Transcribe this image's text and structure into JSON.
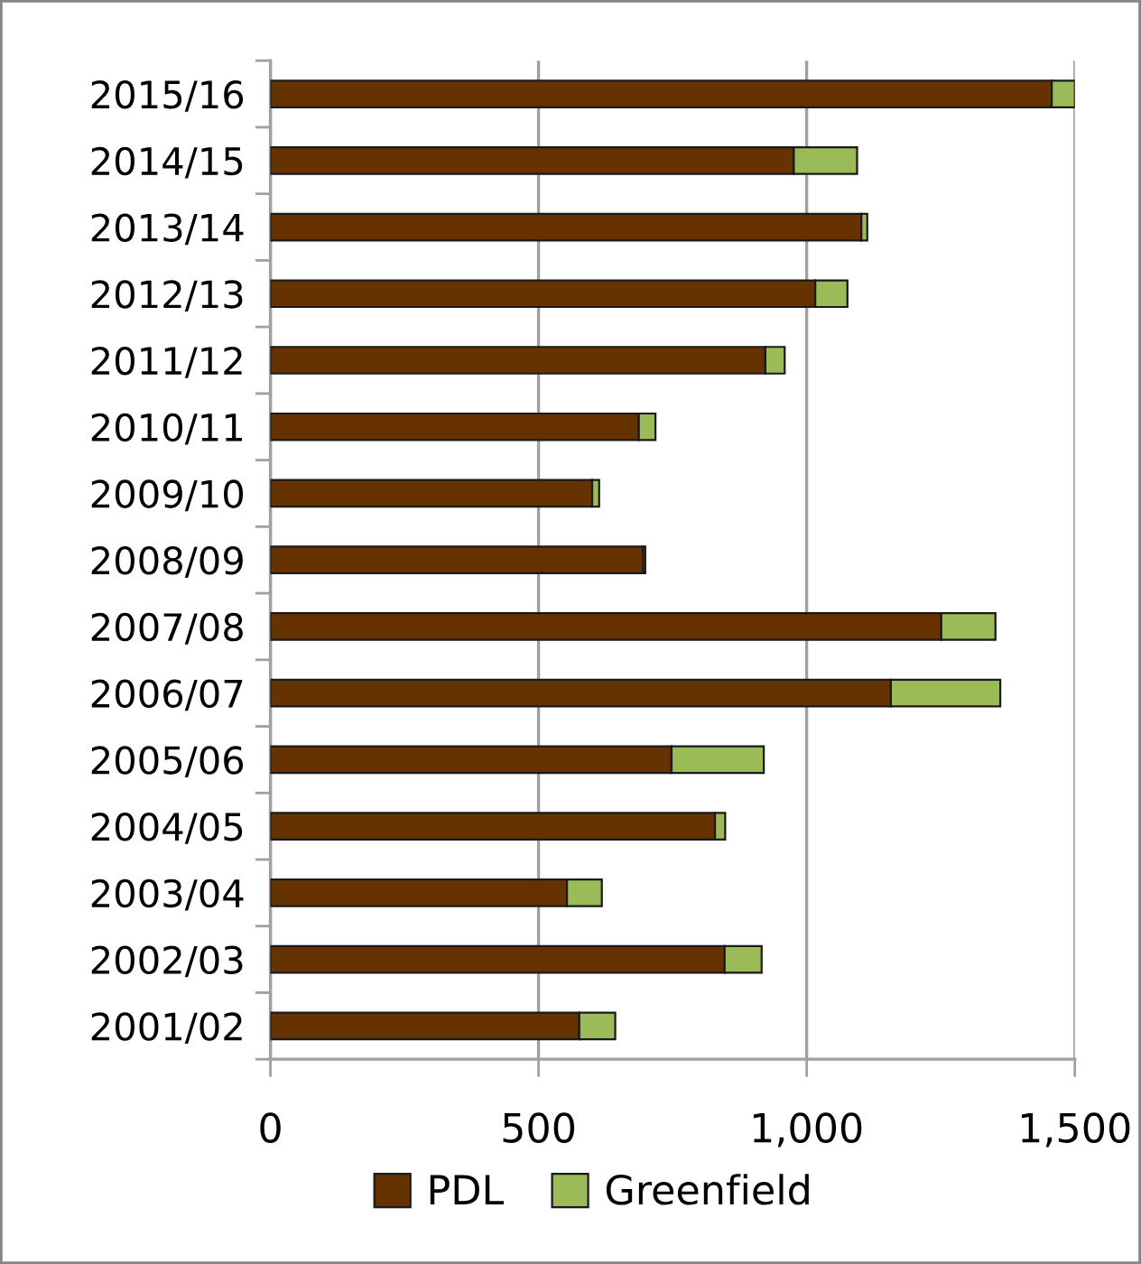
{
  "chart_data": {
    "type": "bar",
    "orientation": "horizontal",
    "stacked": true,
    "categories": [
      "2015/16",
      "2014/15",
      "2013/14",
      "2012/13",
      "2011/12",
      "2010/11",
      "2009/10",
      "2008/09",
      "2007/08",
      "2006/07",
      "2005/06",
      "2004/05",
      "2003/04",
      "2002/03",
      "2001/02"
    ],
    "series": [
      {
        "name": "PDL",
        "color": "#663300",
        "values": [
          1457,
          976,
          1102,
          1016,
          923,
          687,
          600,
          695,
          1251,
          1157,
          748,
          829,
          553,
          847,
          576
        ]
      },
      {
        "name": "Greenfield",
        "color": "#9bbb59",
        "values": [
          43,
          118,
          11,
          60,
          36,
          31,
          13,
          4,
          101,
          204,
          172,
          19,
          65,
          69,
          67
        ]
      }
    ],
    "xlim": [
      0,
      1500
    ],
    "xticks": [
      0,
      500,
      {
        "value": 1000,
        "label": "1,000"
      },
      {
        "value": 1500,
        "label": "1,500"
      }
    ],
    "grid": "x",
    "legend": "bottom"
  }
}
